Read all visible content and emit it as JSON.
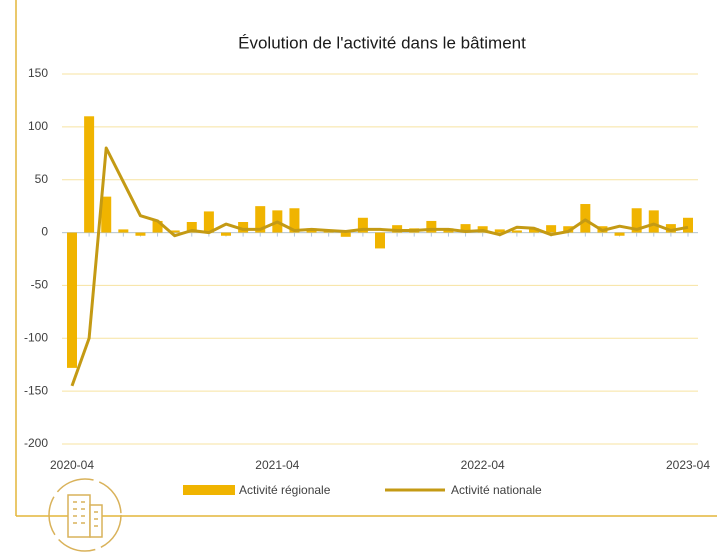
{
  "chart_data": {
    "type": "bar-line",
    "title": "Évolution de l'activité dans le bâtiment",
    "categories": [
      "2020-04",
      null,
      null,
      null,
      null,
      null,
      null,
      null,
      null,
      null,
      null,
      null,
      "2021-04",
      null,
      null,
      null,
      null,
      null,
      null,
      null,
      null,
      null,
      null,
      null,
      "2022-04",
      null,
      null,
      null,
      null,
      null,
      null,
      null,
      null,
      null,
      null,
      null,
      "2023-04"
    ],
    "series": [
      {
        "name": "Activité régionale",
        "type": "bar",
        "color": "#f0b400",
        "values": [
          -128,
          110,
          34,
          3,
          -3,
          11,
          2,
          10,
          20,
          -3,
          10,
          25,
          21,
          23,
          4,
          2,
          -4,
          14,
          -15,
          7,
          4,
          11,
          4,
          8,
          6,
          3,
          2,
          4,
          7,
          6,
          27,
          6,
          -3,
          23,
          21,
          8,
          14
        ]
      },
      {
        "name": "Activité nationale",
        "type": "line",
        "color": "#c49a14",
        "values": [
          -145,
          -100,
          80,
          48,
          16,
          11,
          -3,
          2,
          0,
          8,
          3,
          3,
          10,
          2,
          3,
          2,
          1,
          3,
          3,
          2,
          2,
          3,
          3,
          1,
          2,
          -2,
          5,
          4,
          -2,
          1,
          12,
          2,
          6,
          3,
          8,
          2,
          5
        ]
      }
    ],
    "ylim": [
      -200,
      150
    ],
    "yticks": [
      -200,
      -150,
      -100,
      -50,
      0,
      50,
      100,
      150
    ],
    "grid": true
  }
}
